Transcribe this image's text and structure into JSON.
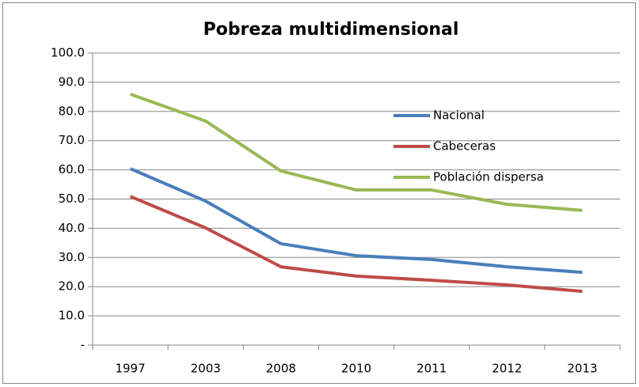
{
  "chart_data": {
    "type": "line",
    "title": "Pobreza multidimensional",
    "categories": [
      "1997",
      "2003",
      "2008",
      "2010",
      "2011",
      "2012",
      "2013"
    ],
    "series": [
      {
        "name": "Nacional",
        "color": "#4a7ebb",
        "values": [
          60.4,
          49.3,
          34.7,
          30.6,
          29.3,
          26.8,
          24.9
        ]
      },
      {
        "name": "Cabeceras",
        "color": "#be4b48",
        "values": [
          50.9,
          40.1,
          26.8,
          23.6,
          22.2,
          20.6,
          18.4
        ]
      },
      {
        "name": "Población dispersa",
        "color": "#98b954",
        "values": [
          85.9,
          76.7,
          59.6,
          53.1,
          53.1,
          48.2,
          46.1
        ]
      }
    ],
    "ylim": [
      0,
      100
    ],
    "yticks": [
      {
        "value": 0,
        "label": "-"
      },
      {
        "value": 10,
        "label": "10.0"
      },
      {
        "value": 20,
        "label": "20.0"
      },
      {
        "value": 30,
        "label": "30.0"
      },
      {
        "value": 40,
        "label": "40.0"
      },
      {
        "value": 50,
        "label": "50.0"
      },
      {
        "value": 60,
        "label": "60.0"
      },
      {
        "value": 70,
        "label": "70.0"
      },
      {
        "value": 80,
        "label": "80.0"
      },
      {
        "value": 90,
        "label": "90.0"
      },
      {
        "value": 100,
        "label": "100.0"
      }
    ],
    "grid": true,
    "legend": "upper right"
  }
}
